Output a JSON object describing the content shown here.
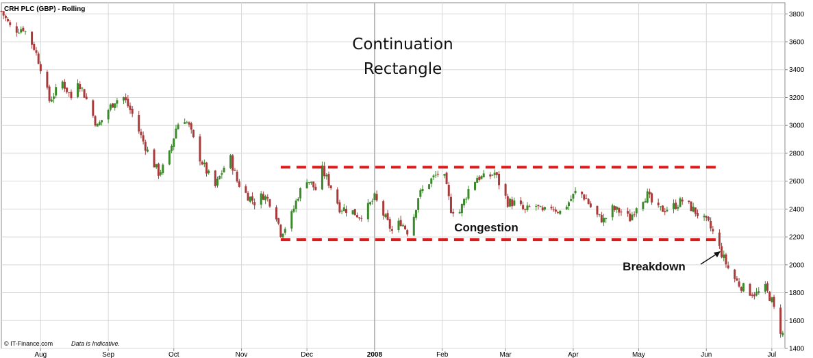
{
  "chart_data": {
    "type": "candlestick",
    "title": "CRH PLC (GBP) - Rolling",
    "overlay_title_lines": [
      "Continuation",
      "Rectangle"
    ],
    "y_ticks": [
      1400,
      1600,
      1800,
      2000,
      2200,
      2400,
      2600,
      2800,
      3000,
      3200,
      3400,
      3600,
      3800
    ],
    "ylim": [
      1400,
      3880
    ],
    "x_months": [
      {
        "label": "Aug",
        "day": 48
      },
      {
        "label": "Sep",
        "day": 79
      },
      {
        "label": "Oct",
        "day": 109
      },
      {
        "label": "Nov",
        "day": 140
      },
      {
        "label": "Dec",
        "day": 170
      },
      {
        "label": "2008",
        "day": 201,
        "bold": true
      },
      {
        "label": "Feb",
        "day": 232
      },
      {
        "label": "Mar",
        "day": 261
      },
      {
        "label": "Apr",
        "day": 292
      },
      {
        "label": "May",
        "day": 322
      },
      {
        "label": "Jun",
        "day": 353
      },
      {
        "label": "Jul",
        "day": 383
      }
    ],
    "xlim": [
      30,
      389
    ],
    "year_divider_day": 201,
    "grid": true,
    "up_color": "#3a8a2a",
    "down_color": "#a83a3a",
    "price_path": [
      [
        30,
        3820
      ],
      [
        35,
        3680
      ],
      [
        40,
        3700
      ],
      [
        45,
        3560
      ],
      [
        48,
        3420
      ],
      [
        52,
        3180
      ],
      [
        58,
        3310
      ],
      [
        62,
        3200
      ],
      [
        65,
        3330
      ],
      [
        70,
        3150
      ],
      [
        74,
        2990
      ],
      [
        78,
        3090
      ],
      [
        82,
        3180
      ],
      [
        86,
        3200
      ],
      [
        90,
        3080
      ],
      [
        94,
        2920
      ],
      [
        98,
        2780
      ],
      [
        102,
        2660
      ],
      [
        106,
        2730
      ],
      [
        110,
        2980
      ],
      [
        113,
        3080
      ],
      [
        116,
        2990
      ],
      [
        120,
        2800
      ],
      [
        124,
        2670
      ],
      [
        128,
        2560
      ],
      [
        132,
        2700
      ],
      [
        135,
        2760
      ],
      [
        138,
        2600
      ],
      [
        142,
        2510
      ],
      [
        146,
        2450
      ],
      [
        150,
        2500
      ],
      [
        155,
        2420
      ],
      [
        158,
        2230
      ],
      [
        162,
        2310
      ],
      [
        166,
        2500
      ],
      [
        170,
        2620
      ],
      [
        174,
        2540
      ],
      [
        177,
        2680
      ],
      [
        181,
        2560
      ],
      [
        185,
        2410
      ],
      [
        190,
        2390
      ],
      [
        194,
        2350
      ],
      [
        197,
        2390
      ],
      [
        201,
        2480
      ],
      [
        205,
        2360
      ],
      [
        209,
        2240
      ],
      [
        213,
        2310
      ],
      [
        217,
        2220
      ],
      [
        221,
        2490
      ],
      [
        225,
        2580
      ],
      [
        229,
        2640
      ],
      [
        232,
        2690
      ],
      [
        236,
        2400
      ],
      [
        240,
        2380
      ],
      [
        244,
        2540
      ],
      [
        248,
        2630
      ],
      [
        252,
        2620
      ],
      [
        256,
        2660
      ],
      [
        259,
        2550
      ],
      [
        262,
        2450
      ],
      [
        266,
        2440
      ],
      [
        270,
        2380
      ],
      [
        274,
        2440
      ],
      [
        278,
        2370
      ],
      [
        282,
        2420
      ],
      [
        286,
        2380
      ],
      [
        290,
        2450
      ],
      [
        294,
        2540
      ],
      [
        298,
        2470
      ],
      [
        302,
        2360
      ],
      [
        306,
        2320
      ],
      [
        310,
        2400
      ],
      [
        314,
        2380
      ],
      [
        318,
        2330
      ],
      [
        322,
        2460
      ],
      [
        326,
        2500
      ],
      [
        330,
        2390
      ],
      [
        334,
        2400
      ],
      [
        338,
        2420
      ],
      [
        342,
        2460
      ],
      [
        346,
        2410
      ],
      [
        350,
        2350
      ],
      [
        354,
        2290
      ],
      [
        357,
        2200
      ],
      [
        360,
        2080
      ],
      [
        364,
        1940
      ],
      [
        368,
        1860
      ],
      [
        372,
        1810
      ],
      [
        376,
        1790
      ],
      [
        380,
        1830
      ],
      [
        383,
        1740
      ],
      [
        386,
        1560
      ],
      [
        388,
        1500
      ]
    ],
    "annotations": [
      {
        "text": "Congestion"
      },
      {
        "text": "Breakdown"
      }
    ],
    "reference_lines": [
      {
        "name": "resistance",
        "value": 2700,
        "from_day": 158,
        "to_day": 360,
        "color": "#e01818"
      },
      {
        "name": "support",
        "value": 2180,
        "from_day": 158,
        "to_day": 360,
        "color": "#e01818"
      }
    ],
    "footer_source": "© IT-Finance.com",
    "footer_note": "Data is Indicative."
  }
}
